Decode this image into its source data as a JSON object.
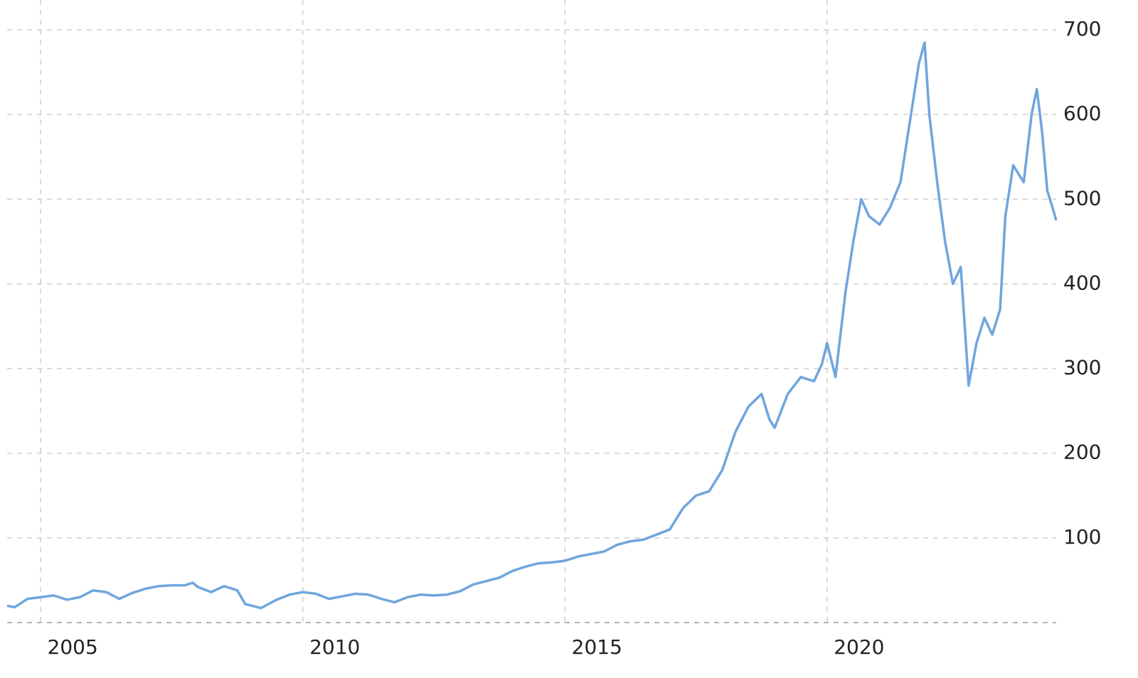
{
  "chart_data": {
    "type": "line",
    "x": [
      2004.36,
      2004.5,
      2004.75,
      2005.0,
      2005.25,
      2005.5,
      2005.75,
      2006.0,
      2006.25,
      2006.5,
      2006.75,
      2007.0,
      2007.25,
      2007.5,
      2007.75,
      2007.9,
      2008.0,
      2008.25,
      2008.5,
      2008.75,
      2008.9,
      2009.2,
      2009.5,
      2009.75,
      2010.0,
      2010.25,
      2010.5,
      2010.75,
      2011.0,
      2011.25,
      2011.5,
      2011.75,
      2012.0,
      2012.25,
      2012.5,
      2012.75,
      2013.0,
      2013.25,
      2013.5,
      2013.75,
      2014.0,
      2014.25,
      2014.5,
      2014.75,
      2015.0,
      2015.25,
      2015.5,
      2015.75,
      2016.0,
      2016.25,
      2016.5,
      2016.75,
      2017.0,
      2017.25,
      2017.5,
      2017.75,
      2018.0,
      2018.25,
      2018.5,
      2018.75,
      2018.9,
      2019.0,
      2019.25,
      2019.5,
      2019.75,
      2019.9,
      2020.0,
      2020.16,
      2020.35,
      2020.5,
      2020.65,
      2020.8,
      2021.0,
      2021.2,
      2021.4,
      2021.6,
      2021.75,
      2021.86,
      2021.95,
      2022.1,
      2022.25,
      2022.4,
      2022.55,
      2022.7,
      2022.85,
      2023.0,
      2023.15,
      2023.3,
      2023.4,
      2023.55,
      2023.75,
      2023.9,
      2024.0,
      2024.1,
      2024.2,
      2024.3,
      2024.37
    ],
    "series": [
      {
        "color": "#6fa6dc",
        "values": [
          20,
          18,
          28,
          30,
          32,
          27,
          30,
          38,
          36,
          28,
          35,
          40,
          43,
          44,
          44,
          47,
          42,
          36,
          43,
          38,
          22,
          17,
          27,
          33,
          36,
          34,
          28,
          31,
          34,
          33,
          28,
          24,
          30,
          33,
          32,
          33,
          37,
          45,
          49,
          53,
          61,
          66,
          70,
          71,
          73,
          78,
          81,
          84,
          92,
          96,
          98,
          104,
          110,
          135,
          150,
          155,
          180,
          225,
          255,
          270,
          240,
          230,
          270,
          290,
          285,
          305,
          330,
          290,
          390,
          450,
          500,
          480,
          470,
          490,
          520,
          600,
          660,
          685,
          600,
          520,
          450,
          400,
          420,
          280,
          330,
          360,
          340,
          370,
          480,
          540,
          520,
          600,
          630,
          580,
          510,
          490,
          475
        ]
      }
    ],
    "xlim": [
      2004.36,
      2024.37
    ],
    "xticks": [
      2005,
      2010,
      2015,
      2020
    ],
    "ylim": [
      0,
      700
    ],
    "yticks": [
      100,
      200,
      300,
      400,
      500,
      600,
      700
    ],
    "grid": true
  }
}
